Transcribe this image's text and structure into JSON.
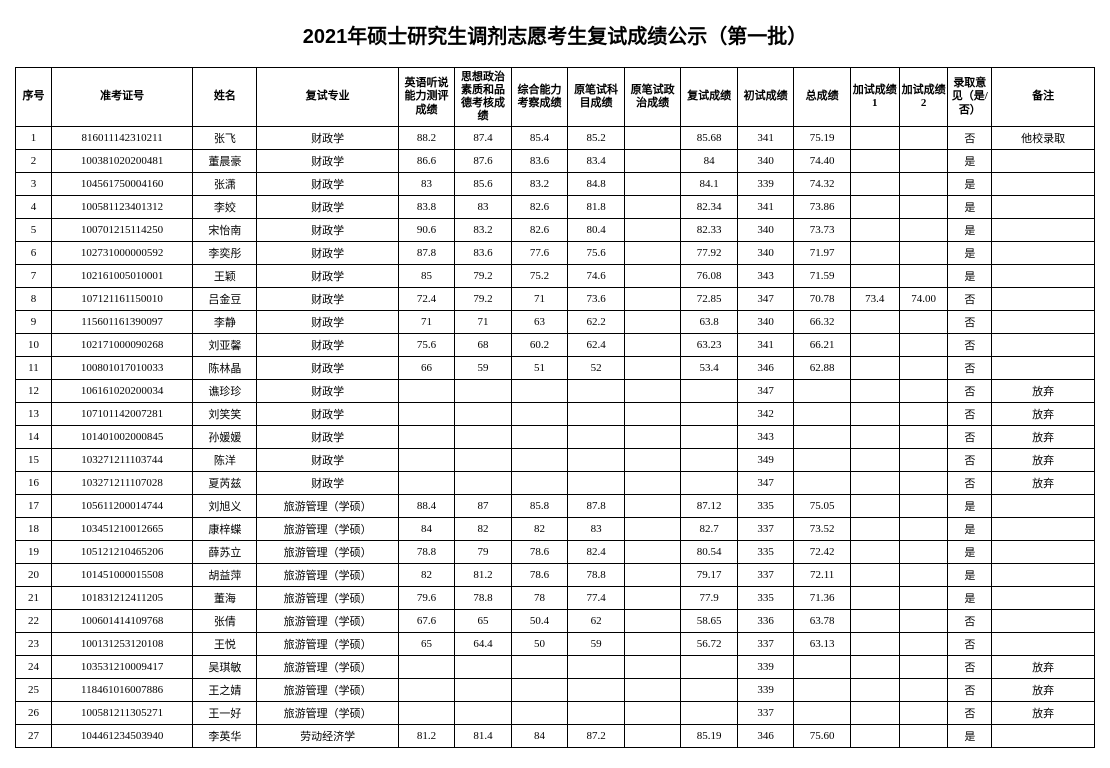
{
  "title": "2021年硕士研究生调剂志愿考生复试成绩公示（第一批）",
  "columns": [
    "序号",
    "准考证号",
    "姓名",
    "复试专业",
    "英语听说能力测评成绩",
    "思想政治素质和品德考核成绩",
    "综合能力考察成绩",
    "原笔试科目成绩",
    "原笔试政治成绩",
    "复试成绩",
    "初试成绩",
    "总成绩",
    "加试成绩1",
    "加试成绩2",
    "录取意见（是/否）",
    "备注"
  ],
  "rows": [
    [
      "1",
      "816011142310211",
      "张飞",
      "财政学",
      "88.2",
      "87.4",
      "85.4",
      "85.2",
      "",
      "85.68",
      "341",
      "75.19",
      "",
      "",
      "否",
      "他校录取"
    ],
    [
      "2",
      "100381020200481",
      "董晨豪",
      "财政学",
      "86.6",
      "87.6",
      "83.6",
      "83.4",
      "",
      "84",
      "340",
      "74.40",
      "",
      "",
      "是",
      ""
    ],
    [
      "3",
      "104561750004160",
      "张潇",
      "财政学",
      "83",
      "85.6",
      "83.2",
      "84.8",
      "",
      "84.1",
      "339",
      "74.32",
      "",
      "",
      "是",
      ""
    ],
    [
      "4",
      "100581123401312",
      "李姣",
      "财政学",
      "83.8",
      "83",
      "82.6",
      "81.8",
      "",
      "82.34",
      "341",
      "73.86",
      "",
      "",
      "是",
      ""
    ],
    [
      "5",
      "100701215114250",
      "宋怡南",
      "财政学",
      "90.6",
      "83.2",
      "82.6",
      "80.4",
      "",
      "82.33",
      "340",
      "73.73",
      "",
      "",
      "是",
      ""
    ],
    [
      "6",
      "102731000000592",
      "李奕彤",
      "财政学",
      "87.8",
      "83.6",
      "77.6",
      "75.6",
      "",
      "77.92",
      "340",
      "71.97",
      "",
      "",
      "是",
      ""
    ],
    [
      "7",
      "102161005010001",
      "王颖",
      "财政学",
      "85",
      "79.2",
      "75.2",
      "74.6",
      "",
      "76.08",
      "343",
      "71.59",
      "",
      "",
      "是",
      ""
    ],
    [
      "8",
      "107121161150010",
      "吕金豆",
      "财政学",
      "72.4",
      "79.2",
      "71",
      "73.6",
      "",
      "72.85",
      "347",
      "70.78",
      "73.4",
      "74.00",
      "否",
      ""
    ],
    [
      "9",
      "115601161390097",
      "李静",
      "财政学",
      "71",
      "71",
      "63",
      "62.2",
      "",
      "63.8",
      "340",
      "66.32",
      "",
      "",
      "否",
      ""
    ],
    [
      "10",
      "102171000090268",
      "刘亚馨",
      "财政学",
      "75.6",
      "68",
      "60.2",
      "62.4",
      "",
      "63.23",
      "341",
      "66.21",
      "",
      "",
      "否",
      ""
    ],
    [
      "11",
      "100801017010033",
      "陈林晶",
      "财政学",
      "66",
      "59",
      "51",
      "52",
      "",
      "53.4",
      "346",
      "62.88",
      "",
      "",
      "否",
      ""
    ],
    [
      "12",
      "106161020200034",
      "谯珍珍",
      "财政学",
      "",
      "",
      "",
      "",
      "",
      "",
      "347",
      "",
      "",
      "",
      "否",
      "放弃"
    ],
    [
      "13",
      "107101142007281",
      "刘笑笑",
      "财政学",
      "",
      "",
      "",
      "",
      "",
      "",
      "342",
      "",
      "",
      "",
      "否",
      "放弃"
    ],
    [
      "14",
      "101401002000845",
      "孙媛媛",
      "财政学",
      "",
      "",
      "",
      "",
      "",
      "",
      "343",
      "",
      "",
      "",
      "否",
      "放弃"
    ],
    [
      "15",
      "103271211103744",
      "陈洋",
      "财政学",
      "",
      "",
      "",
      "",
      "",
      "",
      "349",
      "",
      "",
      "",
      "否",
      "放弃"
    ],
    [
      "16",
      "103271211107028",
      "夏芮兹",
      "财政学",
      "",
      "",
      "",
      "",
      "",
      "",
      "347",
      "",
      "",
      "",
      "否",
      "放弃"
    ],
    [
      "17",
      "105611200014744",
      "刘旭义",
      "旅游管理（学硕）",
      "88.4",
      "87",
      "85.8",
      "87.8",
      "",
      "87.12",
      "335",
      "75.05",
      "",
      "",
      "是",
      ""
    ],
    [
      "18",
      "103451210012665",
      "康梓蝶",
      "旅游管理（学硕）",
      "84",
      "82",
      "82",
      "83",
      "",
      "82.7",
      "337",
      "73.52",
      "",
      "",
      "是",
      ""
    ],
    [
      "19",
      "105121210465206",
      "薛苏立",
      "旅游管理（学硕）",
      "78.8",
      "79",
      "78.6",
      "82.4",
      "",
      "80.54",
      "335",
      "72.42",
      "",
      "",
      "是",
      ""
    ],
    [
      "20",
      "101451000015508",
      "胡益萍",
      "旅游管理（学硕）",
      "82",
      "81.2",
      "78.6",
      "78.8",
      "",
      "79.17",
      "337",
      "72.11",
      "",
      "",
      "是",
      ""
    ],
    [
      "21",
      "101831212411205",
      "董海",
      "旅游管理（学硕）",
      "79.6",
      "78.8",
      "78",
      "77.4",
      "",
      "77.9",
      "335",
      "71.36",
      "",
      "",
      "是",
      ""
    ],
    [
      "22",
      "100601414109768",
      "张倩",
      "旅游管理（学硕）",
      "67.6",
      "65",
      "50.4",
      "62",
      "",
      "58.65",
      "336",
      "63.78",
      "",
      "",
      "否",
      ""
    ],
    [
      "23",
      "100131253120108",
      "王悦",
      "旅游管理（学硕）",
      "65",
      "64.4",
      "50",
      "59",
      "",
      "56.72",
      "337",
      "63.13",
      "",
      "",
      "否",
      ""
    ],
    [
      "24",
      "103531210009417",
      "吴琪敏",
      "旅游管理（学硕）",
      "",
      "",
      "",
      "",
      "",
      "",
      "339",
      "",
      "",
      "",
      "否",
      "放弃"
    ],
    [
      "25",
      "118461016007886",
      "王之婧",
      "旅游管理（学硕）",
      "",
      "",
      "",
      "",
      "",
      "",
      "339",
      "",
      "",
      "",
      "否",
      "放弃"
    ],
    [
      "26",
      "100581211305271",
      "王一好",
      "旅游管理（学硕）",
      "",
      "",
      "",
      "",
      "",
      "",
      "337",
      "",
      "",
      "",
      "否",
      "放弃"
    ],
    [
      "27",
      "104461234503940",
      "李英华",
      "劳动经济学",
      "81.2",
      "81.4",
      "84",
      "87.2",
      "",
      "85.19",
      "346",
      "75.60",
      "",
      "",
      "是",
      ""
    ]
  ],
  "col_classes": [
    "col-seq",
    "col-id",
    "col-name",
    "col-major",
    "col-s",
    "col-s",
    "col-s",
    "col-s",
    "col-s",
    "col-s",
    "col-s",
    "col-total",
    "col-extra",
    "col-extra",
    "col-opin",
    "col-note"
  ]
}
